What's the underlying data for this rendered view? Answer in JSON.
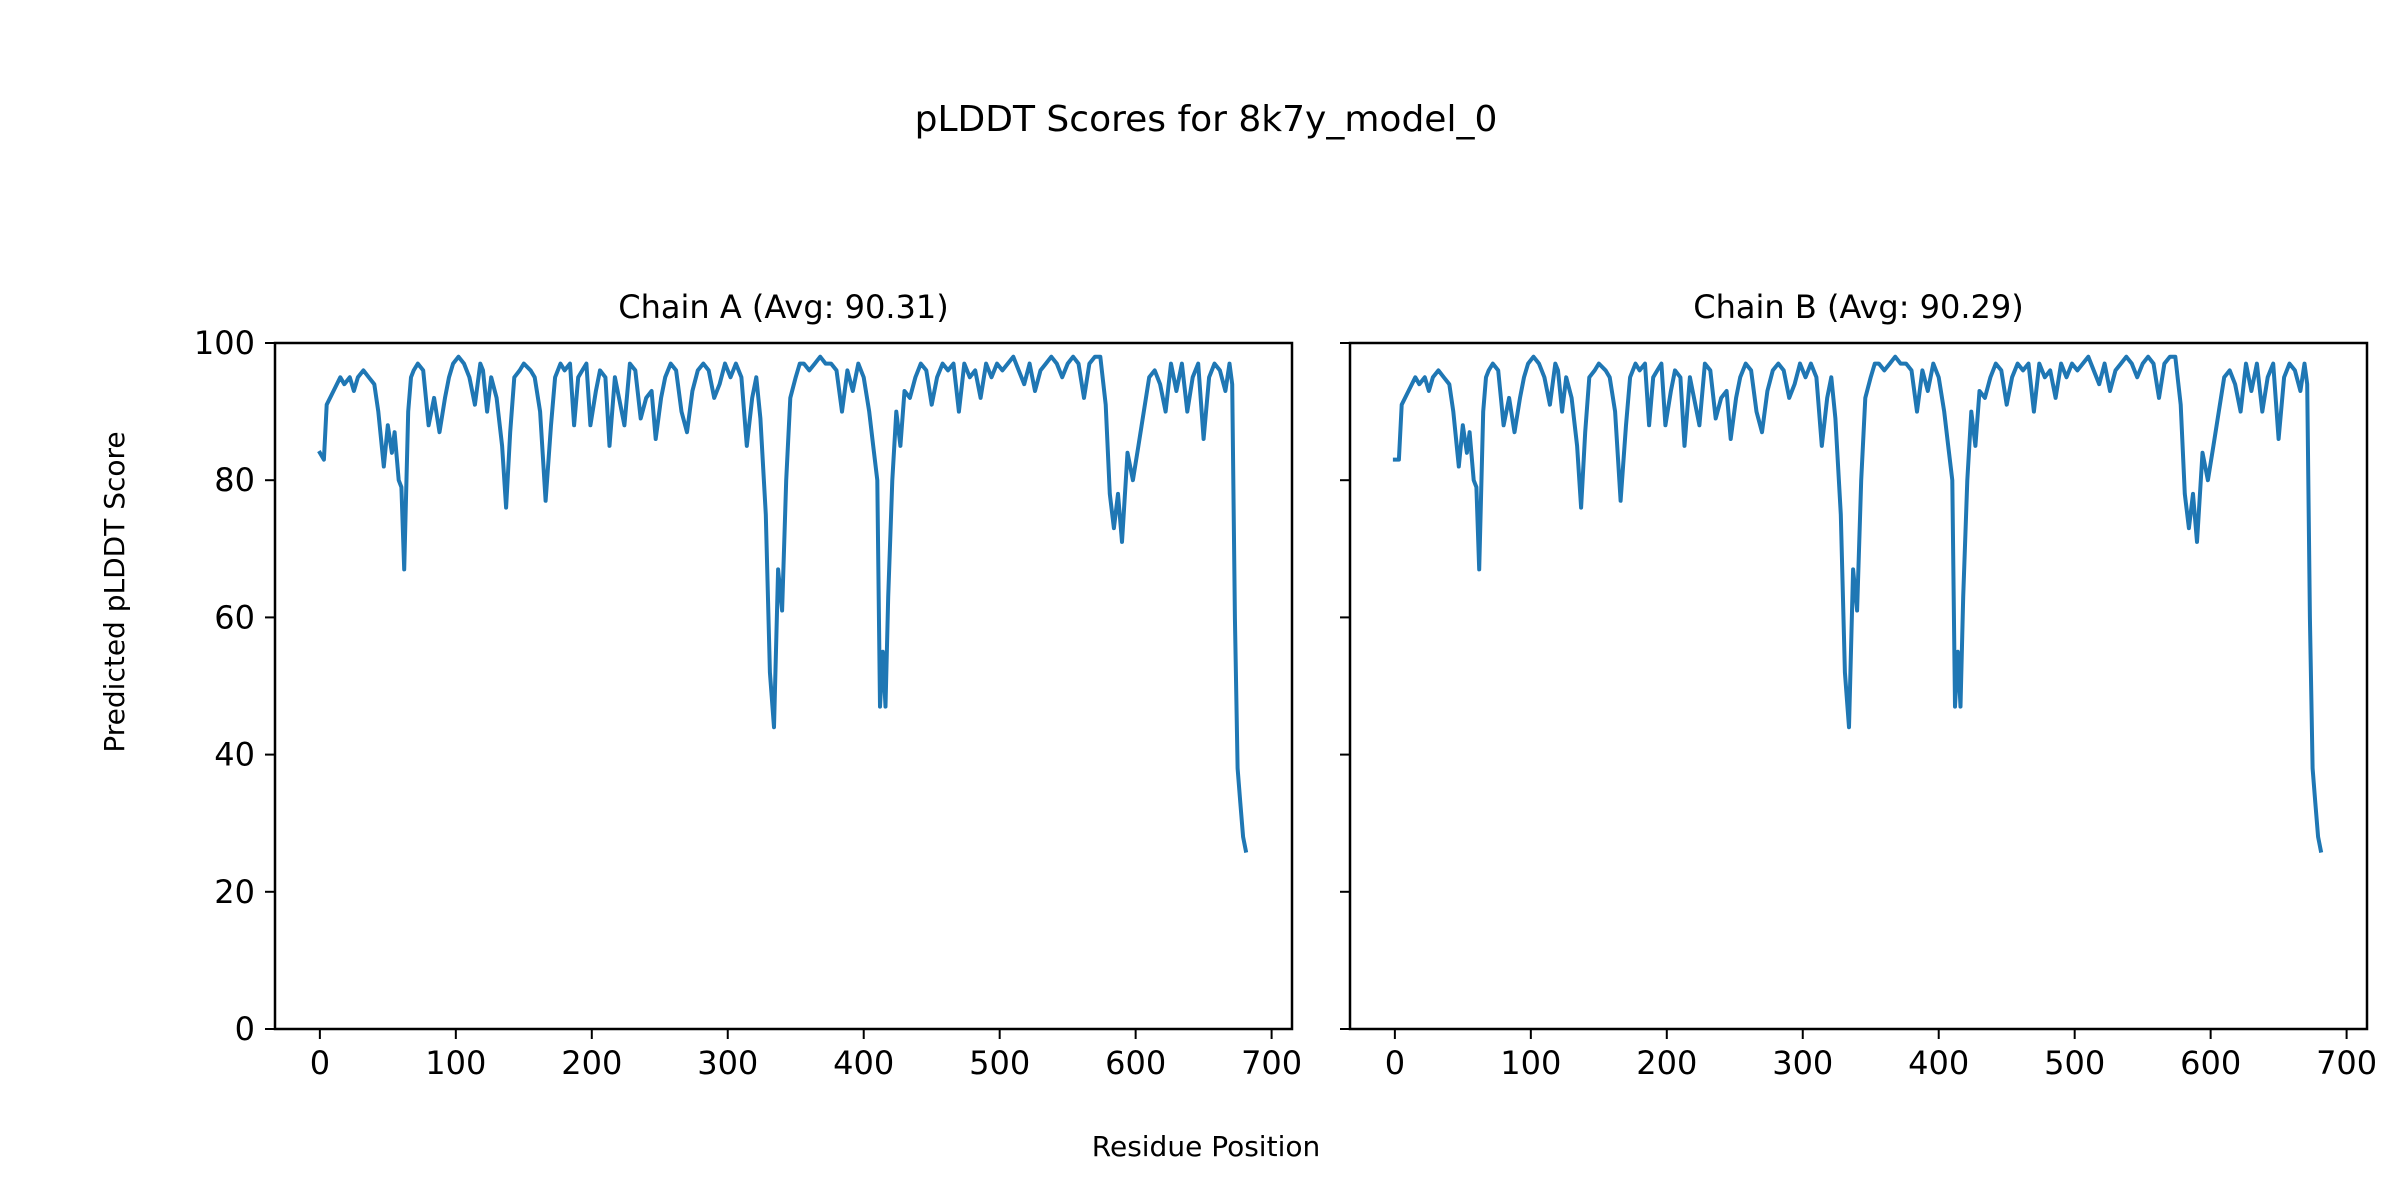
{
  "figure": {
    "title": "pLDDT Scores for 8k7y_model_0",
    "xlabel": "Residue Position",
    "ylabel": "Predicted pLDDT Score",
    "line_color": "#1f77b4"
  },
  "chart_data": [
    {
      "type": "line",
      "title": "Chain A (Avg: 90.31)",
      "xlabel": "Residue Position",
      "ylabel": "Predicted pLDDT Score",
      "xlim": [
        -33,
        715
      ],
      "ylim": [
        0,
        100
      ],
      "xticks": [
        0,
        100,
        200,
        300,
        400,
        500,
        600,
        700
      ],
      "yticks": [
        0,
        20,
        40,
        60,
        80,
        100
      ],
      "grid": false,
      "series": [
        {
          "name": "Chain A",
          "x": [
            0,
            3,
            5,
            10,
            15,
            18,
            22,
            25,
            28,
            32,
            36,
            40,
            43,
            47,
            50,
            53,
            55,
            58,
            60,
            62,
            65,
            67,
            69,
            72,
            76,
            80,
            84,
            88,
            92,
            95,
            98,
            102,
            106,
            110,
            114,
            118,
            120,
            123,
            126,
            130,
            134,
            137,
            140,
            143,
            147,
            150,
            155,
            158,
            162,
            166,
            170,
            173,
            177,
            180,
            184,
            187,
            190,
            193,
            196,
            199,
            203,
            206,
            210,
            213,
            217,
            220,
            224,
            228,
            232,
            236,
            240,
            244,
            247,
            251,
            254,
            258,
            262,
            266,
            270,
            274,
            278,
            282,
            286,
            290,
            294,
            298,
            302,
            306,
            310,
            314,
            318,
            321,
            324,
            328,
            331,
            334,
            337,
            340,
            343,
            346,
            350,
            353,
            356,
            360,
            364,
            368,
            372,
            376,
            380,
            384,
            388,
            392,
            396,
            400,
            404,
            407,
            410,
            412,
            414,
            416,
            418,
            421,
            424,
            427,
            430,
            434,
            438,
            442,
            446,
            450,
            454,
            458,
            462,
            466,
            470,
            474,
            478,
            482,
            486,
            490,
            494,
            498,
            502,
            506,
            510,
            514,
            518,
            522,
            526,
            530,
            534,
            538,
            542,
            546,
            550,
            554,
            558,
            562,
            566,
            570,
            574,
            578,
            581,
            584,
            587,
            590,
            594,
            598,
            602,
            606,
            610,
            614,
            618,
            622,
            626,
            630,
            634,
            638,
            642,
            646,
            650,
            654,
            658,
            662,
            666,
            669,
            671,
            673,
            675,
            677,
            679,
            681
          ],
          "values": [
            84,
            83,
            91,
            93,
            95,
            94,
            95,
            93,
            95,
            96,
            95,
            94,
            90,
            82,
            88,
            84,
            87,
            80,
            79,
            67,
            90,
            95,
            96,
            97,
            96,
            88,
            92,
            87,
            92,
            95,
            97,
            98,
            97,
            95,
            91,
            97,
            96,
            90,
            95,
            92,
            85,
            76,
            87,
            95,
            96,
            97,
            96,
            95,
            90,
            77,
            88,
            95,
            97,
            96,
            97,
            88,
            95,
            96,
            97,
            88,
            93,
            96,
            95,
            85,
            95,
            92,
            88,
            97,
            96,
            89,
            92,
            93,
            86,
            92,
            95,
            97,
            96,
            90,
            87,
            93,
            96,
            97,
            96,
            92,
            94,
            97,
            95,
            97,
            95,
            85,
            92,
            95,
            89,
            75,
            52,
            44,
            67,
            61,
            80,
            92,
            95,
            97,
            97,
            96,
            97,
            98,
            97,
            97,
            96,
            90,
            96,
            93,
            97,
            95,
            90,
            85,
            80,
            47,
            55,
            47,
            63,
            80,
            90,
            85,
            93,
            92,
            95,
            97,
            96,
            91,
            95,
            97,
            96,
            97,
            90,
            97,
            95,
            96,
            92,
            97,
            95,
            97,
            96,
            97,
            98,
            96,
            94,
            97,
            93,
            96,
            97,
            98,
            97,
            95,
            97,
            98,
            97,
            92,
            97,
            98,
            98,
            91,
            78,
            73,
            78,
            71,
            84,
            80,
            85,
            90,
            95,
            96,
            94,
            90,
            97,
            93,
            97,
            90,
            95,
            97,
            86,
            95,
            97,
            96,
            93,
            97,
            94,
            60,
            38,
            33,
            28,
            26
          ]
        }
      ]
    },
    {
      "type": "line",
      "title": "Chain B (Avg: 90.29)",
      "xlabel": "Residue Position",
      "ylabel": "",
      "xlim": [
        -33,
        715
      ],
      "ylim": [
        0,
        100
      ],
      "xticks": [
        0,
        100,
        200,
        300,
        400,
        500,
        600,
        700
      ],
      "yticks": [
        0,
        20,
        40,
        60,
        80,
        100
      ],
      "grid": false,
      "series": [
        {
          "name": "Chain B",
          "x": [
            0,
            3,
            5,
            10,
            15,
            18,
            22,
            25,
            28,
            32,
            36,
            40,
            43,
            47,
            50,
            53,
            55,
            58,
            60,
            62,
            65,
            67,
            69,
            72,
            76,
            80,
            84,
            88,
            92,
            95,
            98,
            102,
            106,
            110,
            114,
            118,
            120,
            123,
            126,
            130,
            134,
            137,
            140,
            143,
            147,
            150,
            155,
            158,
            162,
            166,
            170,
            173,
            177,
            180,
            184,
            187,
            190,
            193,
            196,
            199,
            203,
            206,
            210,
            213,
            217,
            220,
            224,
            228,
            232,
            236,
            240,
            244,
            247,
            251,
            254,
            258,
            262,
            266,
            270,
            274,
            278,
            282,
            286,
            290,
            294,
            298,
            302,
            306,
            310,
            314,
            318,
            321,
            324,
            328,
            331,
            334,
            337,
            340,
            343,
            346,
            350,
            353,
            356,
            360,
            364,
            368,
            372,
            376,
            380,
            384,
            388,
            392,
            396,
            400,
            404,
            407,
            410,
            412,
            414,
            416,
            418,
            421,
            424,
            427,
            430,
            434,
            438,
            442,
            446,
            450,
            454,
            458,
            462,
            466,
            470,
            474,
            478,
            482,
            486,
            490,
            494,
            498,
            502,
            506,
            510,
            514,
            518,
            522,
            526,
            530,
            534,
            538,
            542,
            546,
            550,
            554,
            558,
            562,
            566,
            570,
            574,
            578,
            581,
            584,
            587,
            590,
            594,
            598,
            602,
            606,
            610,
            614,
            618,
            622,
            626,
            630,
            634,
            638,
            642,
            646,
            650,
            654,
            658,
            662,
            666,
            669,
            671,
            673,
            675,
            677,
            679,
            681
          ],
          "values": [
            83,
            83,
            91,
            93,
            95,
            94,
            95,
            93,
            95,
            96,
            95,
            94,
            90,
            82,
            88,
            84,
            87,
            80,
            79,
            67,
            90,
            95,
            96,
            97,
            96,
            88,
            92,
            87,
            92,
            95,
            97,
            98,
            97,
            95,
            91,
            97,
            96,
            90,
            95,
            92,
            85,
            76,
            87,
            95,
            96,
            97,
            96,
            95,
            90,
            77,
            88,
            95,
            97,
            96,
            97,
            88,
            95,
            96,
            97,
            88,
            93,
            96,
            95,
            85,
            95,
            92,
            88,
            97,
            96,
            89,
            92,
            93,
            86,
            92,
            95,
            97,
            96,
            90,
            87,
            93,
            96,
            97,
            96,
            92,
            94,
            97,
            95,
            97,
            95,
            85,
            92,
            95,
            89,
            75,
            52,
            44,
            67,
            61,
            80,
            92,
            95,
            97,
            97,
            96,
            97,
            98,
            97,
            97,
            96,
            90,
            96,
            93,
            97,
            95,
            90,
            85,
            80,
            47,
            55,
            47,
            63,
            80,
            90,
            85,
            93,
            92,
            95,
            97,
            96,
            91,
            95,
            97,
            96,
            97,
            90,
            97,
            95,
            96,
            92,
            97,
            95,
            97,
            96,
            97,
            98,
            96,
            94,
            97,
            93,
            96,
            97,
            98,
            97,
            95,
            97,
            98,
            97,
            92,
            97,
            98,
            98,
            91,
            78,
            73,
            78,
            71,
            84,
            80,
            85,
            90,
            95,
            96,
            94,
            90,
            97,
            93,
            97,
            90,
            95,
            97,
            86,
            95,
            97,
            96,
            93,
            97,
            94,
            60,
            38,
            33,
            28,
            26
          ]
        }
      ]
    }
  ]
}
